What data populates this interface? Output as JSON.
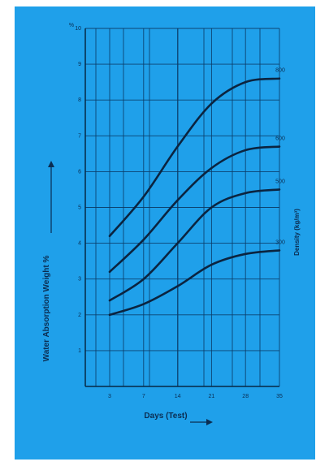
{
  "colors": {
    "panel_background": "#1fa0ea",
    "ink": "#0b2440",
    "grid": "#0b3a66",
    "page_background": "#ffffff"
  },
  "chart_data": {
    "type": "line",
    "title": "",
    "xlabel": "Days (Test)",
    "ylabel": "Water Absorption Weight %",
    "y2label": "Density (kg/m³)",
    "y_unit_label": "%",
    "xlim": [
      0,
      35
    ],
    "ylim": [
      0,
      10
    ],
    "x_ticks": [
      3,
      7,
      14,
      21,
      28,
      35
    ],
    "x_tick_labels": [
      "3",
      "7",
      "14",
      "21",
      "28",
      "35"
    ],
    "x_tick_positions": [
      0,
      1,
      2,
      3,
      4,
      5
    ],
    "y_ticks": [
      1,
      2,
      3,
      4,
      5,
      6,
      7,
      8,
      9,
      10
    ],
    "y_tick_labels": [
      "1",
      "2",
      "3",
      "4",
      "5",
      "6",
      "7",
      "8",
      "9",
      "10"
    ],
    "grid": true,
    "legend": "none",
    "series": [
      {
        "name": "800",
        "x": [
          3,
          7,
          14,
          21,
          28,
          35
        ],
        "values": [
          4.2,
          5.3,
          6.7,
          7.9,
          8.5,
          8.6
        ]
      },
      {
        "name": "600",
        "x": [
          3,
          7,
          14,
          21,
          28,
          35
        ],
        "values": [
          3.2,
          4.1,
          5.2,
          6.1,
          6.6,
          6.7
        ]
      },
      {
        "name": "500",
        "x": [
          3,
          7,
          14,
          21,
          28,
          35
        ],
        "values": [
          2.4,
          3.0,
          4.0,
          5.0,
          5.4,
          5.5
        ]
      },
      {
        "name": "300",
        "x": [
          3,
          7,
          14,
          21,
          28,
          35
        ],
        "values": [
          2.0,
          2.3,
          2.8,
          3.4,
          3.7,
          3.8
        ]
      }
    ]
  }
}
